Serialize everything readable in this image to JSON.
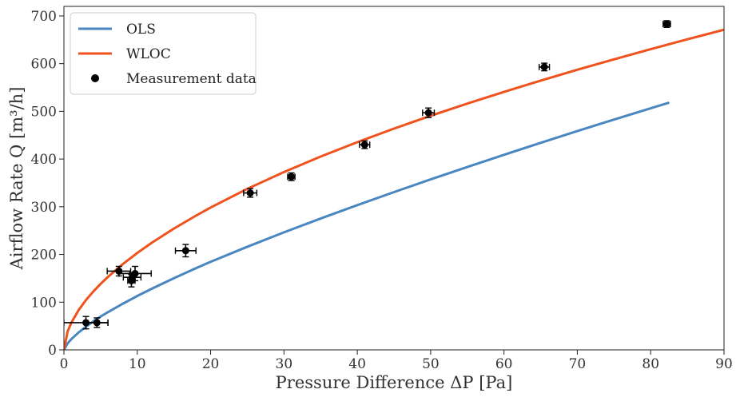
{
  "chart_data": {
    "type": "scatter",
    "xlabel": "Pressure Difference ΔP [Pa]",
    "ylabel": "Airflow Rate Q [m³/h]",
    "xlim": [
      0,
      90
    ],
    "ylim": [
      0,
      720
    ],
    "x_ticks": [
      0,
      10,
      20,
      30,
      40,
      50,
      60,
      70,
      80,
      90
    ],
    "y_ticks": [
      0,
      100,
      200,
      300,
      400,
      500,
      600,
      700
    ],
    "grid": false,
    "legend_position": "top-left",
    "series": [
      {
        "name": "OLS",
        "kind": "line",
        "color": "#4a86c0",
        "x": [
          0,
          0.5,
          1,
          2,
          3,
          4,
          5,
          6,
          8,
          10,
          12,
          15,
          18,
          20,
          25,
          30,
          35,
          40,
          45,
          50,
          55,
          60,
          65,
          70,
          75,
          80,
          82.4
        ],
        "y": [
          0,
          13.6,
          22.3,
          36.5,
          48.4,
          59.8,
          69.8,
          79.1,
          96.5,
          113.0,
          128.3,
          150.3,
          171.2,
          184.6,
          216.1,
          246.3,
          275.3,
          303.4,
          330.7,
          357.4,
          383.4,
          408.9,
          434.0,
          458.6,
          482.8,
          506.5,
          517.8
        ]
      },
      {
        "name": "WLOC",
        "kind": "line",
        "color": "#f0521e",
        "x": [
          0,
          0.5,
          1,
          2,
          3,
          4,
          5,
          6,
          8,
          10,
          12,
          15,
          18,
          20,
          25,
          30,
          35,
          40,
          45,
          50,
          55,
          60,
          65,
          70,
          75,
          80,
          85,
          90
        ],
        "y": [
          0,
          38.5,
          56.7,
          83.4,
          104.3,
          122.3,
          138.3,
          153.0,
          179.4,
          203.1,
          224.8,
          254.3,
          281.3,
          298.4,
          337.5,
          372.8,
          405.2,
          435.4,
          463.8,
          490.7,
          516.3,
          540.8,
          564.4,
          587.1,
          609.0,
          630.3,
          651.0,
          671.1
        ]
      },
      {
        "name": "Measurement data",
        "kind": "errorbar",
        "color": "#000000",
        "points": [
          {
            "x": 3.0,
            "y": 57,
            "xerr": 3.0,
            "yerr": 13
          },
          {
            "x": 4.5,
            "y": 57,
            "xerr": 1.5,
            "yerr": 10
          },
          {
            "x": 7.5,
            "y": 165,
            "xerr": 1.6,
            "yerr": 10
          },
          {
            "x": 9.2,
            "y": 145,
            "xerr": 0.5,
            "yerr": 13
          },
          {
            "x": 9.3,
            "y": 152,
            "xerr": 1.2,
            "yerr": 10
          },
          {
            "x": 9.7,
            "y": 160,
            "xerr": 2.2,
            "yerr": 15
          },
          {
            "x": 16.6,
            "y": 208,
            "xerr": 1.4,
            "yerr": 13
          },
          {
            "x": 25.4,
            "y": 329,
            "xerr": 0.9,
            "yerr": 9
          },
          {
            "x": 31.0,
            "y": 363,
            "xerr": 0.5,
            "yerr": 8
          },
          {
            "x": 41.0,
            "y": 430,
            "xerr": 0.7,
            "yerr": 8
          },
          {
            "x": 49.7,
            "y": 497,
            "xerr": 0.8,
            "yerr": 10
          },
          {
            "x": 65.5,
            "y": 593,
            "xerr": 0.7,
            "yerr": 8
          },
          {
            "x": 82.2,
            "y": 683,
            "xerr": 0.5,
            "yerr": 7
          }
        ]
      }
    ]
  }
}
